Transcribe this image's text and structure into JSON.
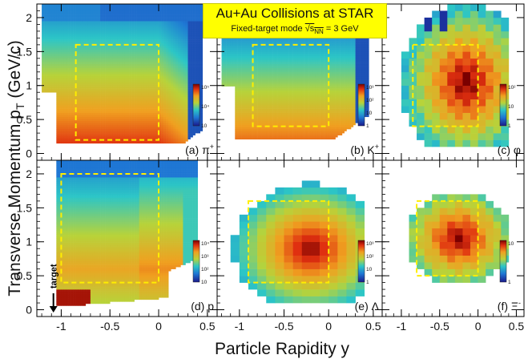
{
  "banner": {
    "title": "Au+Au Collisions at STAR",
    "subtitle_prefix": "Fixed-target mode ",
    "subtitle_root": "s",
    "subtitle_sub": "NN",
    "subtitle_suffix": " = 3 GeV"
  },
  "axes": {
    "ylabel": "Transverse Momentum p",
    "ylabel_sub": "T",
    "ylabel_unit": " (GeV/c)",
    "xlabel": "Particle Rapidity y",
    "x_ticks": [
      "-1",
      "-0.5",
      "0",
      "0.5"
    ],
    "y_ticks": [
      "0",
      "0.5",
      "1",
      "1.5",
      "2"
    ]
  },
  "target_label": "target",
  "colors": {
    "accent_box": "#ffee00",
    "banner": "#ffff00"
  },
  "chart_data": [
    {
      "type": "heatmap",
      "panel": "(a) π⁺",
      "label": "(a) π",
      "label_sup": "+",
      "xlim": [
        -1.25,
        0.6
      ],
      "ylim": [
        -0.1,
        2.2
      ],
      "acceptance_box": {
        "y": [
          -0.85,
          0.0
        ],
        "pT": [
          0.2,
          1.6
        ]
      },
      "colorbar_ticks": [
        "10",
        "10⁴",
        "10⁵"
      ]
    },
    {
      "type": "heatmap",
      "panel": "(b) K⁺",
      "label": "(b) K",
      "label_sup": "+",
      "xlim": [
        -1.25,
        0.6
      ],
      "ylim": [
        -0.1,
        2.2
      ],
      "acceptance_box": {
        "y": [
          -0.85,
          0.0
        ],
        "pT": [
          0.4,
          1.6
        ]
      },
      "colorbar_ticks": [
        "1",
        "10",
        "10²",
        "10³"
      ]
    },
    {
      "type": "heatmap",
      "panel": "(c) φ",
      "label": "(c) φ",
      "label_sup": "",
      "xlim": [
        -1.25,
        0.6
      ],
      "ylim": [
        -0.1,
        2.2
      ],
      "acceptance_box": {
        "y": [
          -0.85,
          0.0
        ],
        "pT": [
          0.4,
          1.6
        ]
      },
      "colorbar_ticks": [
        "1",
        "10",
        "10²"
      ]
    },
    {
      "type": "heatmap",
      "panel": "(d) p",
      "label": "(d) p",
      "label_sup": "",
      "xlim": [
        -1.25,
        0.6
      ],
      "ylim": [
        -0.1,
        2.2
      ],
      "acceptance_box": {
        "y": [
          -1.0,
          0.0
        ],
        "pT": [
          0.4,
          2.0
        ]
      },
      "colorbar_ticks": [
        "10",
        "10²",
        "10³",
        "10⁴"
      ]
    },
    {
      "type": "heatmap",
      "panel": "(e) Λ",
      "label": "(e) Λ",
      "label_sup": "",
      "xlim": [
        -1.25,
        0.6
      ],
      "ylim": [
        -0.1,
        2.2
      ],
      "acceptance_box": {
        "y": [
          -0.9,
          0.0
        ],
        "pT": [
          0.4,
          1.6
        ]
      },
      "colorbar_ticks": [
        "1",
        "10",
        "10²",
        "10³"
      ]
    },
    {
      "type": "heatmap",
      "panel": "(f) Ξ⁻",
      "label": "(f) Ξ",
      "label_sup": "-",
      "xlim": [
        -1.25,
        0.6
      ],
      "ylim": [
        -0.1,
        2.2
      ],
      "acceptance_box": {
        "y": [
          -0.8,
          0.0
        ],
        "pT": [
          0.5,
          1.6
        ]
      },
      "colorbar_ticks": [
        "1",
        "10"
      ]
    }
  ]
}
